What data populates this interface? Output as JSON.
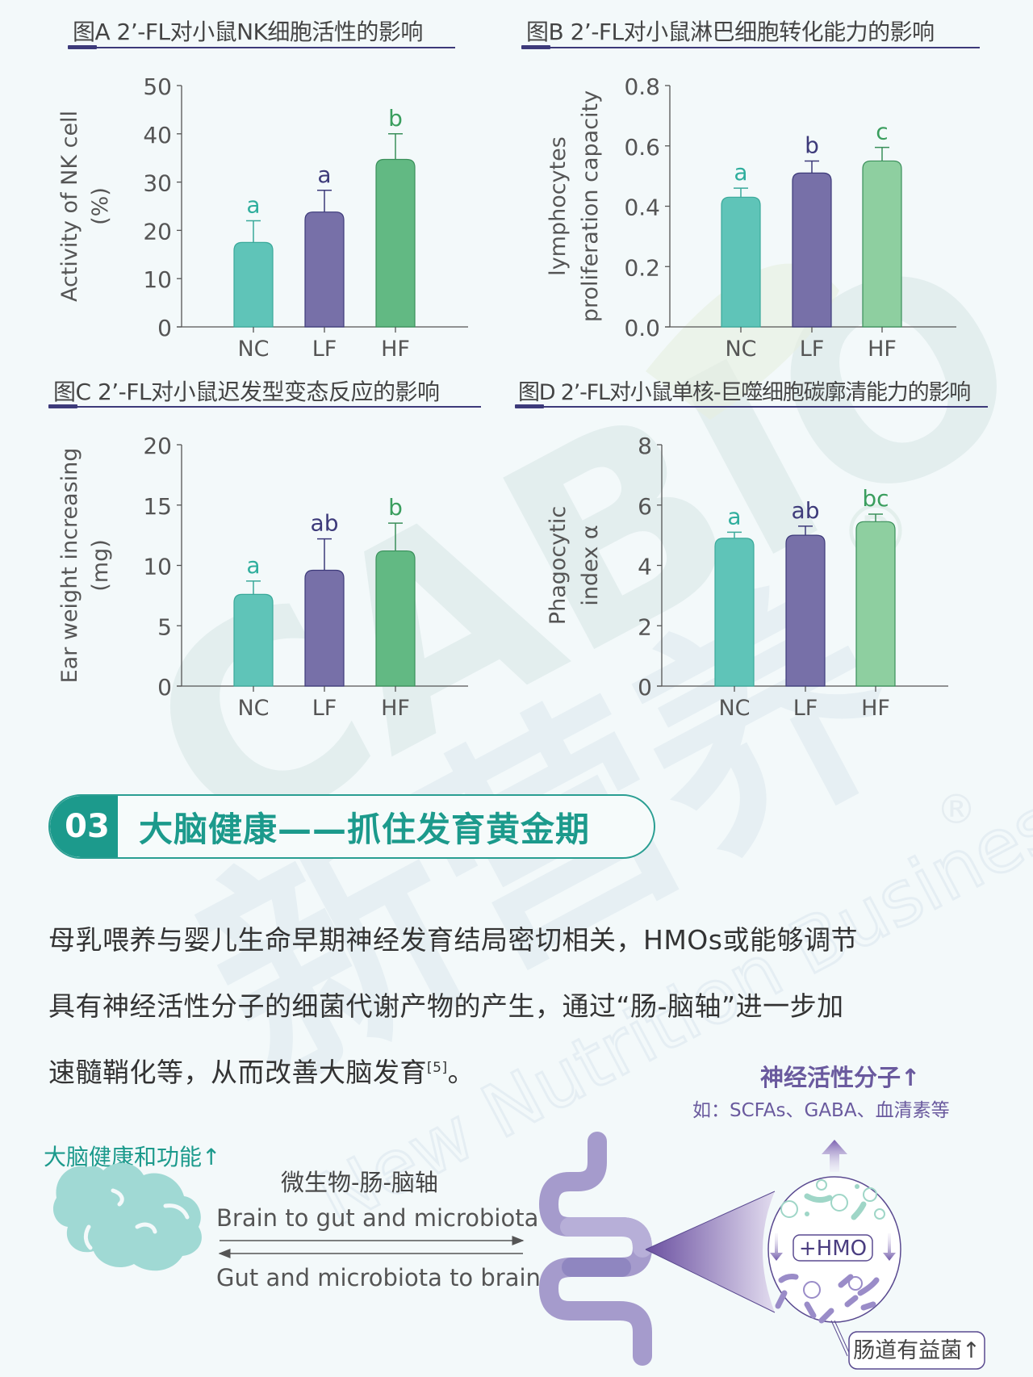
{
  "colors": {
    "nc": "#5fc4b8",
    "lf": "#7770a8",
    "hf_a": "#62b983",
    "hf_b": "#8ecfa0",
    "letter_nc": "#2fae9d",
    "letter_lf": "#3d3a7a",
    "letter_hf": "#3a9e5e",
    "accent_teal": "#1c9a8c",
    "accent_purple": "#6a5a9e",
    "axis": "#555555",
    "title_rule": "#3d3a7a"
  },
  "chart_data": [
    {
      "type": "bar",
      "panel": "A",
      "title": "图A 2’-FL对小鼠NK细胞活性的影响",
      "categories": [
        "NC",
        "LF",
        "HF"
      ],
      "values": [
        17.5,
        23.8,
        34.7
      ],
      "error_upper": [
        22.0,
        28.3,
        40.0
      ],
      "significance": [
        "a",
        "a",
        "b"
      ],
      "xlabel": "",
      "ylabel": "Activity of NK cell (%)",
      "ylabel_lines": [
        "Activity of NK cell",
        "(%)"
      ],
      "ylim": [
        0,
        50
      ],
      "yticks": [
        "0",
        "10",
        "20",
        "30",
        "40",
        "50"
      ],
      "grid": false
    },
    {
      "type": "bar",
      "panel": "B",
      "title": "图B 2’-FL对小鼠淋巴细胞转化能力的影响",
      "categories": [
        "NC",
        "LF",
        "HF"
      ],
      "values": [
        0.43,
        0.51,
        0.55
      ],
      "error_upper": [
        0.46,
        0.55,
        0.595
      ],
      "significance": [
        "a",
        "b",
        "c"
      ],
      "xlabel": "",
      "ylabel": "lymphocytes proliferation capacity",
      "ylabel_lines": [
        "lymphocytes",
        "proliferation capacity"
      ],
      "ylim": [
        0,
        0.8
      ],
      "yticks": [
        "0.0",
        "0.2",
        "0.4",
        "0.6",
        "0.8"
      ],
      "grid": false
    },
    {
      "type": "bar",
      "panel": "C",
      "title": "图C 2’-FL对小鼠迟发型变态反应的影响",
      "categories": [
        "NC",
        "LF",
        "HF"
      ],
      "values": [
        7.6,
        9.6,
        11.2
      ],
      "error_upper": [
        8.7,
        12.2,
        13.5
      ],
      "significance": [
        "a",
        "ab",
        "b"
      ],
      "xlabel": "",
      "ylabel": "Ear weight increasing (mg)",
      "ylabel_lines": [
        "Ear weight increasing",
        "(mg)"
      ],
      "ylim": [
        0,
        20
      ],
      "yticks": [
        "0",
        "5",
        "10",
        "15",
        "20"
      ],
      "grid": false
    },
    {
      "type": "bar",
      "panel": "D",
      "title": "图D 2’-FL对小鼠单核-巨噬细胞碳廓清能力的影响",
      "categories": [
        "NC",
        "LF",
        "HF"
      ],
      "values": [
        4.9,
        5.0,
        5.45
      ],
      "error_upper": [
        5.1,
        5.3,
        5.7
      ],
      "significance": [
        "a",
        "ab",
        "bc"
      ],
      "xlabel": "",
      "ylabel": "Phagocytic index α",
      "ylabel_lines": [
        "Phagocytic",
        "index α"
      ],
      "ylim": [
        0,
        8
      ],
      "yticks": [
        "0",
        "2",
        "4",
        "6",
        "8"
      ],
      "grid": false
    }
  ],
  "section": {
    "number": "03",
    "title": "大脑健康——抓住发育黄金期"
  },
  "body": {
    "line1": "母乳喂养与婴儿生命早期神经发育结局密切相关，HMOs或能够调节",
    "line2": "具有神经活性分子的细菌代谢产物的产生，通过“肠-脑轴”进一步加",
    "line3": "速髓鞘化等，从而改善大脑发育",
    "citation": "[5]",
    "line3_end": "。"
  },
  "diagram": {
    "brain_label": "大脑健康和功能↑",
    "axis_title": "微生物-肠-脑轴",
    "arrow_top_label": "Brain to gut and microbiota",
    "arrow_bottom_label": "Gut and microbiota to brain",
    "neuro_title": "神经活性分子↑",
    "neuro_examples": "如：SCFAs、GABA、血清素等",
    "hmo_label": "+HMO",
    "bacteria_label": "肠道有益菌↑",
    "icons": {
      "brain": "brain-icon",
      "gut": "intestine-icon",
      "magnifier": "microbiota-zoom-circle"
    }
  },
  "watermark": {
    "brand": "CABIO",
    "cn": "新营养",
    "en": "New Nutrition Business",
    "mark": "®"
  }
}
